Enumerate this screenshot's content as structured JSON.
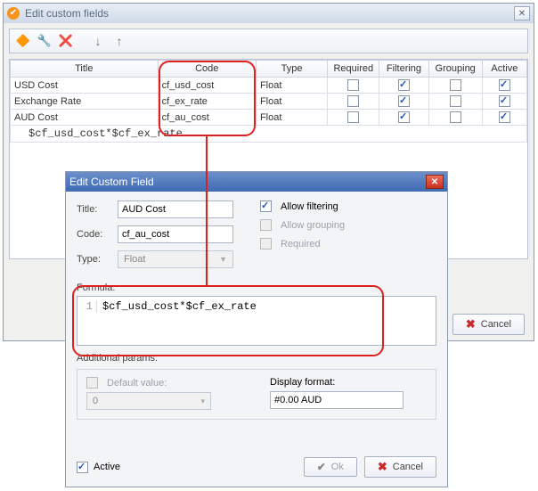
{
  "main_window": {
    "title": "Edit custom fields",
    "columns": [
      "Title",
      "Code",
      "Type",
      "Required",
      "Filtering",
      "Grouping",
      "Active"
    ],
    "rows": [
      {
        "title": "USD Cost",
        "code": "cf_usd_cost",
        "type": "Float",
        "required": false,
        "filtering": true,
        "grouping": false,
        "active": true
      },
      {
        "title": "Exchange Rate",
        "code": "cf_ex_rate",
        "type": "Float",
        "required": false,
        "filtering": true,
        "grouping": false,
        "active": true
      },
      {
        "title": "AUD Cost",
        "code": "cf_au_cost",
        "type": "Float",
        "required": false,
        "filtering": true,
        "grouping": false,
        "active": true
      }
    ],
    "formula_preview": "$cf_usd_cost*$cf_ex_rate",
    "cancel_label": "Cancel"
  },
  "modal": {
    "title": "Edit Custom Field",
    "title_label": "Title:",
    "title_value": "AUD Cost",
    "code_label": "Code:",
    "code_value": "cf_au_cost",
    "type_label": "Type:",
    "type_value": "Float",
    "allow_filtering_label": "Allow filtering",
    "allow_filtering": true,
    "allow_grouping_label": "Allow grouping",
    "allow_grouping": false,
    "required_label": "Required",
    "required": false,
    "formula_label": "Formula:",
    "formula_value": "$cf_usd_cost*$cf_ex_rate",
    "additional_params_label": "Additional params:",
    "default_value_label": "Default value:",
    "default_value": "0",
    "display_format_label": "Display format:",
    "display_format_value": "#0.00 AUD",
    "active_label": "Active",
    "active": true,
    "ok_label": "Ok",
    "cancel_label": "Cancel"
  },
  "colors": {
    "highlight": "#e02020",
    "accent_check": "#1c56b8"
  }
}
